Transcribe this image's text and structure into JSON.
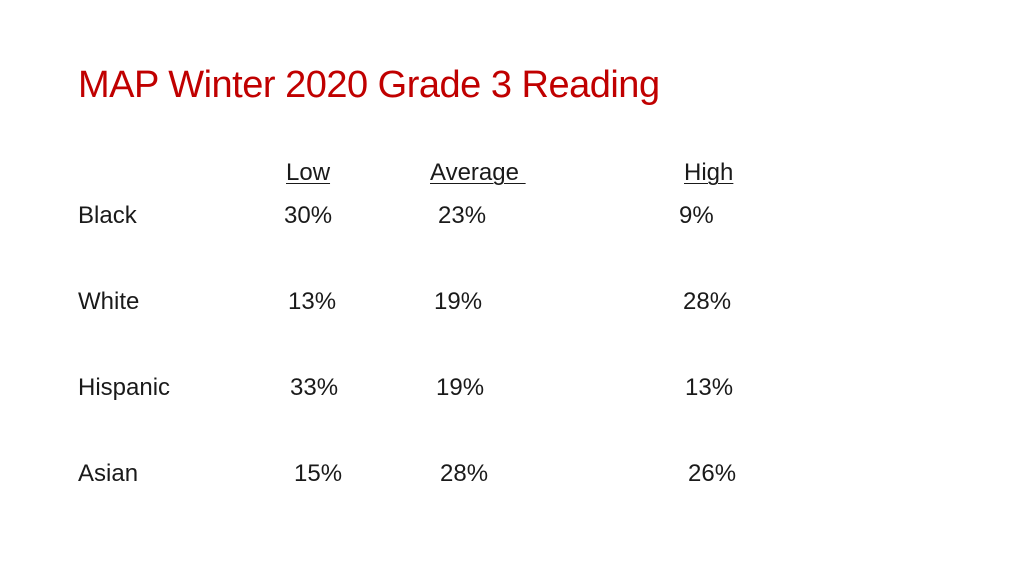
{
  "slide": {
    "title": "MAP Winter 2020 Grade 3 Reading",
    "title_color": "#c00000"
  },
  "table": {
    "headers": [
      "Low",
      "Average ",
      "High"
    ],
    "rows": [
      {
        "label": "Black",
        "low": "30%",
        "average": "23%",
        "high": "9%"
      },
      {
        "label": "White",
        "low": "13%",
        "average": "19%",
        "high": "28%"
      },
      {
        "label": "Hispanic",
        "low": "33%",
        "average": "19%",
        "high": "13%"
      },
      {
        "label": "Asian",
        "low": "15%",
        "average": "28%",
        "high": "26%"
      }
    ]
  }
}
